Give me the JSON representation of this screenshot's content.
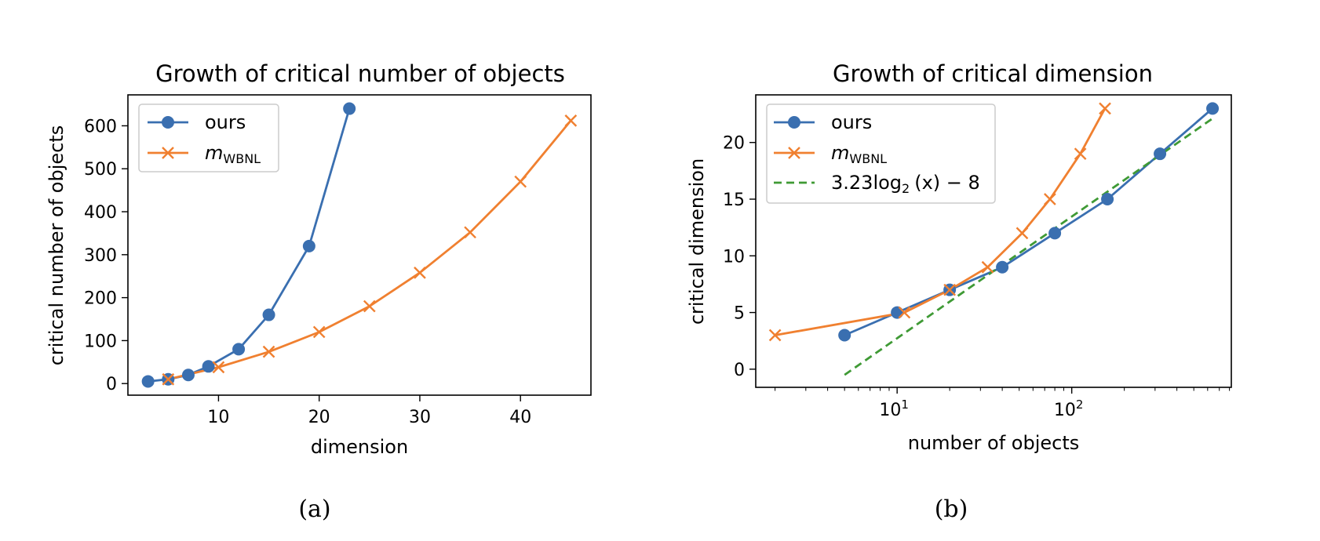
{
  "colors": {
    "ours": "#3a6fb0",
    "wbnl": "#f08030",
    "fit": "#3f9a35"
  },
  "chart_data": [
    {
      "type": "line",
      "title": "Growth of critical number of objects",
      "xlabel": "dimension",
      "ylabel": "critical number of objects",
      "xlim": [
        1,
        47
      ],
      "ylim": [
        -27,
        672
      ],
      "xticks": [
        10,
        20,
        30,
        40
      ],
      "xtick_labels": [
        "10",
        "20",
        "30",
        "40"
      ],
      "yticks": [
        0,
        100,
        200,
        300,
        400,
        500,
        600
      ],
      "ytick_labels": [
        "0",
        "100",
        "200",
        "300",
        "400",
        "500",
        "600"
      ],
      "legend": {
        "position": "top-left",
        "entries": [
          "ours",
          "m",
          "WBNL"
        ]
      },
      "series": [
        {
          "name": "ours",
          "marker": "circle",
          "x": [
            3,
            5,
            7,
            9,
            12,
            15,
            19,
            23
          ],
          "y": [
            5,
            10,
            20,
            40,
            80,
            160,
            320,
            640
          ]
        },
        {
          "name": "m_WBNL",
          "marker": "x",
          "x": [
            5,
            10,
            15,
            20,
            25,
            30,
            35,
            40,
            45
          ],
          "y": [
            10,
            38,
            74,
            120,
            180,
            258,
            352,
            470,
            612
          ]
        }
      ]
    },
    {
      "type": "line",
      "xscale": "log",
      "title": "Growth of critical dimension",
      "xlabel": "number of objects",
      "ylabel": "critical dimension",
      "xlim": [
        1.55,
        820
      ],
      "ylim": [
        -1.6,
        24.2
      ],
      "xticks": [
        10,
        100
      ],
      "xtick_labels": [
        "10",
        "1",
        "10",
        "2"
      ],
      "yticks": [
        0,
        5,
        10,
        15,
        20
      ],
      "ytick_labels": [
        "0",
        "5",
        "10",
        "15",
        "20"
      ],
      "legend": {
        "position": "top-left",
        "entries": [
          "ours",
          "m",
          "WBNL",
          "3.23log",
          "2",
          "(x) − 8"
        ]
      },
      "series": [
        {
          "name": "ours",
          "marker": "circle",
          "x": [
            5,
            10,
            20,
            40,
            80,
            160,
            320,
            640
          ],
          "y": [
            3,
            5,
            7,
            9,
            12,
            15,
            19,
            23
          ]
        },
        {
          "name": "m_WBNL",
          "marker": "x",
          "x": [
            2,
            11,
            20,
            33,
            52,
            75,
            112,
            155
          ],
          "y": [
            3,
            5,
            7,
            9,
            12,
            15,
            19,
            23
          ]
        },
        {
          "name": "3.23log2(x) - 8",
          "marker": "none",
          "dashed": true,
          "x": [
            5,
            640
          ],
          "y": [
            -0.5,
            22.12
          ]
        }
      ]
    }
  ],
  "captions": {
    "a": "(a)",
    "b": "(b)"
  }
}
